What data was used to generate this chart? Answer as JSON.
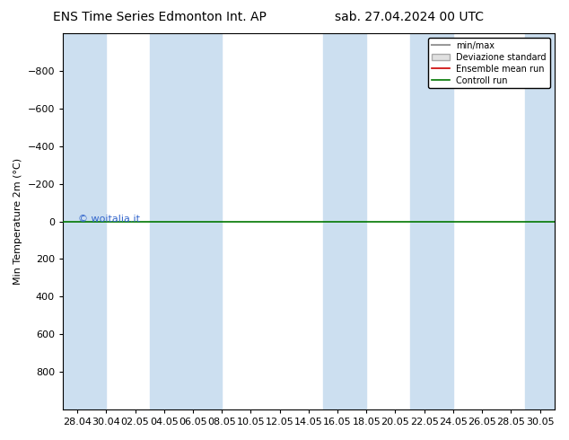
{
  "title_left": "ENS Time Series Edmonton Int. AP",
  "title_right": "sab. 27.04.2024 00 UTC",
  "xlabel": "",
  "ylabel": "Min Temperature 2m (°C)",
  "ylim": [
    -1000,
    1000
  ],
  "yticks": [
    -800,
    -600,
    -400,
    -200,
    0,
    200,
    400,
    600,
    800
  ],
  "xtick_labels": [
    "28.04",
    "30.04",
    "02.05",
    "04.05",
    "06.05",
    "08.05",
    "10.05",
    "12.05",
    "14.05",
    "16.05",
    "18.05",
    "20.05",
    "22.05",
    "24.05",
    "26.05",
    "28.05",
    "30.05"
  ],
  "background_color": "#ffffff",
  "plot_bg_color": "#ffffff",
  "band_color": "#ccdff0",
  "control_run_color": "#007700",
  "ensemble_mean_color": "#cc0000",
  "minmax_color": "#999999",
  "std_color": "#cccccc",
  "watermark": "© woitalia.it",
  "watermark_color": "#3366cc",
  "legend_entries": [
    "min/max",
    "Deviazione standard",
    "Ensemble mean run",
    "Controll run"
  ],
  "title_fontsize": 10,
  "axis_fontsize": 8,
  "tick_fontsize": 8,
  "band_positions": [
    0,
    1,
    4,
    5,
    8,
    9,
    12,
    13,
    16,
    17,
    20,
    21,
    24,
    25
  ]
}
